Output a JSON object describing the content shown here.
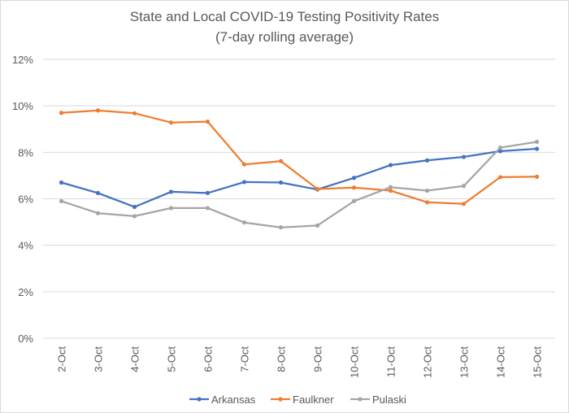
{
  "chart_data": {
    "type": "line",
    "title": "State and Local COVID-19 Testing Positivity Rates",
    "subtitle": "(7-day rolling average)",
    "xlabel": "",
    "ylabel": "",
    "ylim": [
      0,
      12
    ],
    "yticks": [
      0,
      2,
      4,
      6,
      8,
      10,
      12
    ],
    "ytick_labels": [
      "0%",
      "2%",
      "4%",
      "6%",
      "8%",
      "10%",
      "12%"
    ],
    "grid": true,
    "legend_position": "bottom",
    "categories": [
      "2-Oct",
      "3-Oct",
      "4-Oct",
      "5-Oct",
      "6-Oct",
      "7-Oct",
      "8-Oct",
      "9-Oct",
      "10-Oct",
      "11-Oct",
      "12-Oct",
      "13-Oct",
      "14-Oct",
      "15-Oct"
    ],
    "series": [
      {
        "name": "Arkansas",
        "color": "#4472c4",
        "values": [
          6.7,
          6.25,
          5.65,
          6.3,
          6.25,
          6.72,
          6.7,
          6.4,
          6.9,
          7.45,
          7.65,
          7.8,
          8.05,
          8.15
        ]
      },
      {
        "name": "Faulkner",
        "color": "#ed7d31",
        "values": [
          9.7,
          9.8,
          9.68,
          9.28,
          9.32,
          7.48,
          7.62,
          6.42,
          6.48,
          6.35,
          5.85,
          5.78,
          6.93,
          6.95
        ]
      },
      {
        "name": "Pulaski",
        "color": "#a5a5a5",
        "values": [
          5.9,
          5.38,
          5.25,
          5.6,
          5.6,
          4.98,
          4.77,
          4.85,
          5.9,
          6.5,
          6.35,
          6.55,
          8.2,
          8.45
        ]
      }
    ]
  }
}
